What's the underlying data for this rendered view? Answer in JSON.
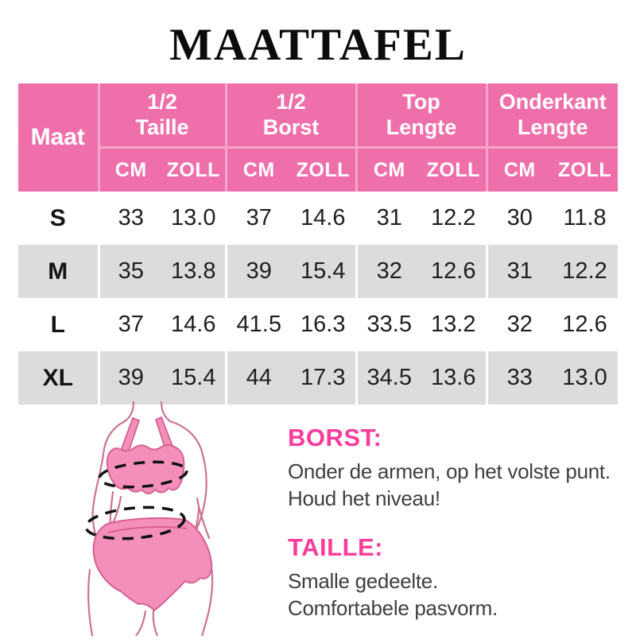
{
  "title": "MAATTAFEL",
  "table": {
    "size_header": "Maat",
    "groups": [
      {
        "label": "1/2\nTaille"
      },
      {
        "label": "1/2\nBorst"
      },
      {
        "label": "Top\nLengte"
      },
      {
        "label": "Onderkant\nLengte"
      }
    ],
    "units": [
      "CM",
      "ZOLL"
    ],
    "rows": [
      {
        "size": "S",
        "values": [
          "33",
          "13.0",
          "37",
          "14.6",
          "31",
          "12.2",
          "30",
          "11.8"
        ]
      },
      {
        "size": "M",
        "values": [
          "35",
          "13.8",
          "39",
          "15.4",
          "32",
          "12.6",
          "31",
          "12.2"
        ]
      },
      {
        "size": "L",
        "values": [
          "37",
          "14.6",
          "41.5",
          "16.3",
          "33.5",
          "13.2",
          "32",
          "12.6"
        ]
      },
      {
        "size": "XL",
        "values": [
          "39",
          "15.4",
          "44",
          "17.3",
          "34.5",
          "13.6",
          "33",
          "13.0"
        ]
      }
    ]
  },
  "notes": [
    {
      "label": "BORST:",
      "lines": [
        "Onder de armen, op het volste punt.",
        "Houd het niveau!"
      ]
    },
    {
      "label": "TAILLE:",
      "lines": [
        "Smalle gedeelte.",
        "Comfortabele pasvorm."
      ]
    }
  ],
  "figure": {
    "icon": "lingerie-measurement-figure",
    "markers": [
      "bust-measure-ellipse",
      "waist-measure-ellipse"
    ]
  },
  "colors": {
    "header_pink": "#ef6fab",
    "header_divider_pink": "#f6a6cc",
    "alt_row_gray": "#dcdcdc",
    "note_label_pink": "#fa3c9b",
    "garment_pink": "#f48fbc",
    "garment_outline_pink": "#d6618f",
    "body_outline_rose": "#cb7390",
    "text_dark": "#3f3f3f"
  }
}
